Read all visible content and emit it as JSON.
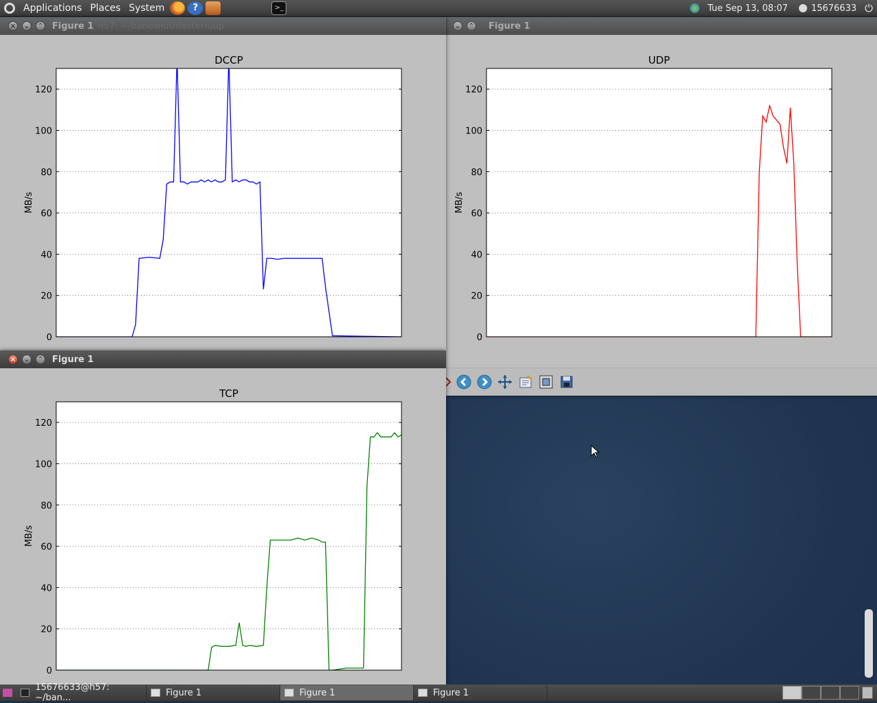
{
  "top_panel": {
    "menus": [
      "Applications",
      "Places",
      "System"
    ],
    "clock": "Tue Sep 13, 08:07",
    "user": "15676633"
  },
  "windows": {
    "udp_window": {
      "title": "Figure 1"
    },
    "dccp_window": {
      "title": "Figure 1",
      "ghost_title": "h57: ~/bandwidthtester/udp"
    },
    "tcp_window": {
      "title": "Figure 1"
    }
  },
  "bottom_panel": {
    "tasks": [
      "15676633@h57: ~/ban...",
      "Figure 1",
      "Figure 1",
      "Figure 1"
    ]
  },
  "colors": {
    "dccp": "#0000ff",
    "udp": "#ff0000",
    "tcp": "#008000"
  },
  "chart_data": [
    {
      "type": "line",
      "title": "DCCP",
      "ylabel": "MB/s",
      "xlabel": "",
      "ylim": [
        0,
        130
      ],
      "xlim": [
        0,
        100
      ],
      "yticks": [
        0,
        20,
        40,
        60,
        80,
        100,
        120
      ],
      "grid": true,
      "series": [
        {
          "name": "DCCP",
          "color": "#0000ff",
          "x": [
            0,
            22,
            23,
            24,
            27,
            30,
            31,
            32,
            33,
            34,
            35,
            36,
            37,
            38,
            39,
            40,
            41,
            42,
            43,
            44,
            45,
            46,
            47,
            48,
            49,
            50,
            51,
            52,
            53,
            54,
            55,
            56,
            57,
            58,
            59,
            60,
            61,
            62,
            62.5,
            64,
            66,
            68,
            70,
            72,
            74,
            76,
            77,
            78,
            80,
            100
          ],
          "y": [
            0,
            0,
            6,
            38,
            38.5,
            38,
            47,
            74,
            75,
            75,
            135,
            75,
            75,
            74,
            75,
            75,
            75,
            76,
            75,
            76,
            75,
            76,
            75,
            75,
            76,
            135,
            75,
            76,
            75,
            76,
            76,
            75,
            75,
            74,
            75,
            23,
            38,
            38,
            38,
            37.5,
            38,
            38,
            38,
            38,
            38,
            38,
            38,
            24,
            0.5,
            0
          ]
        }
      ]
    },
    {
      "type": "line",
      "title": "UDP",
      "ylabel": "MB/s",
      "xlabel": "",
      "ylim": [
        0,
        130
      ],
      "xlim": [
        0,
        100
      ],
      "yticks": [
        0,
        20,
        40,
        60,
        80,
        100,
        120
      ],
      "grid": true,
      "series": [
        {
          "name": "UDP",
          "color": "#ff0000",
          "x": [
            0,
            78,
            79,
            80,
            81,
            82,
            83,
            84,
            85,
            86,
            87,
            88,
            89,
            90,
            91,
            92,
            100
          ],
          "y": [
            0,
            0,
            80,
            107,
            104,
            112,
            107,
            105,
            103,
            92,
            84,
            111,
            84,
            35,
            0,
            0,
            0
          ]
        }
      ]
    },
    {
      "type": "line",
      "title": "TCP",
      "ylabel": "MB/s",
      "xlabel": "",
      "ylim": [
        0,
        130
      ],
      "xlim": [
        0,
        100
      ],
      "yticks": [
        0,
        20,
        40,
        60,
        80,
        100,
        120
      ],
      "grid": true,
      "series": [
        {
          "name": "TCP",
          "color": "#008000",
          "x": [
            0,
            44,
            45,
            46,
            48,
            50,
            52,
            53,
            54,
            55,
            56,
            58,
            60,
            61,
            62,
            63,
            64,
            66,
            68,
            70,
            72,
            74,
            76,
            77,
            78,
            79,
            80,
            82,
            84,
            89,
            90,
            91,
            92,
            93,
            94,
            95,
            96,
            97,
            98,
            99,
            100
          ],
          "y": [
            0,
            0,
            11,
            12,
            11.5,
            11.5,
            12,
            23,
            12,
            11.5,
            12,
            11.5,
            12,
            40,
            63,
            63,
            63,
            63,
            63,
            64,
            63,
            64,
            63,
            62,
            62,
            0,
            0,
            0.5,
            1,
            1,
            89,
            113,
            113,
            115,
            113,
            113,
            113,
            113,
            115,
            113,
            114
          ]
        }
      ]
    }
  ]
}
